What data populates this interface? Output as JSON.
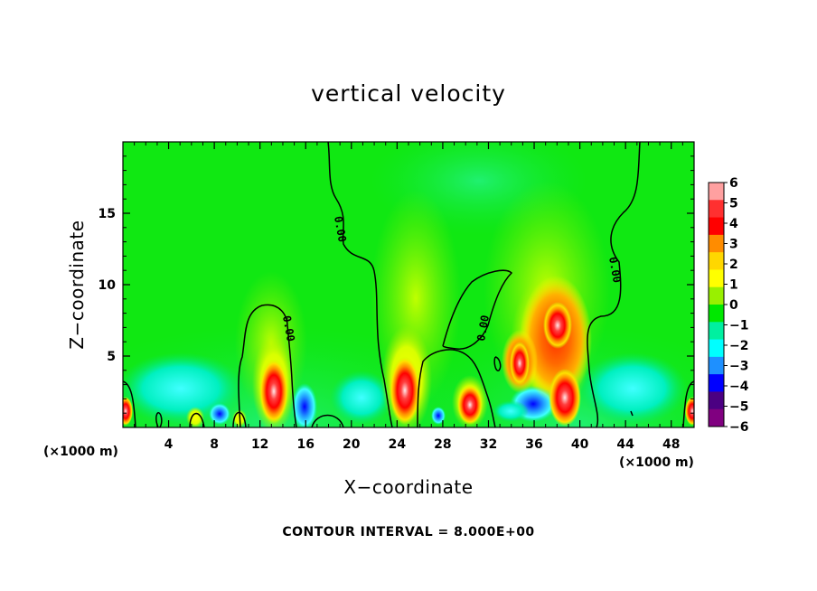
{
  "chart_data": {
    "type": "heatmap",
    "title": "vertical velocity",
    "xlabel": "X−coordinate",
    "ylabel": "Z−coordinate",
    "xlim": [
      0,
      50
    ],
    "ylim": [
      0,
      20
    ],
    "x_unit_left": "(×1000 m)",
    "x_unit_right": "(×1000 m)",
    "x_ticks": [
      4,
      8,
      12,
      16,
      20,
      24,
      28,
      32,
      36,
      40,
      44,
      48
    ],
    "y_ticks": [
      5,
      10,
      15
    ],
    "colorbar": {
      "levels": [
        6,
        5,
        4,
        3,
        2,
        1,
        0,
        -1,
        -2,
        -3,
        -4,
        -5,
        -6
      ],
      "level_labels": [
        "6",
        "5",
        "4",
        "3",
        "2",
        "1",
        "0",
        "−1",
        "−2",
        "−3",
        "−4",
        "−5",
        "−6"
      ],
      "colors": [
        "#ffa0a0",
        "#ff3030",
        "#ff0000",
        "#ff8c00",
        "#ffd700",
        "#ffff00",
        "#99f000",
        "#00e800",
        "#00f0a0",
        "#00ffff",
        "#1e90ff",
        "#0000ff",
        "#4b0082",
        "#800080"
      ]
    },
    "contour_interval_label": "CONTOUR INTERVAL = 8.000E+00",
    "contour_line_labels": [
      "0.00",
      "0.00",
      "0.00",
      "0.00"
    ],
    "grid": false
  }
}
